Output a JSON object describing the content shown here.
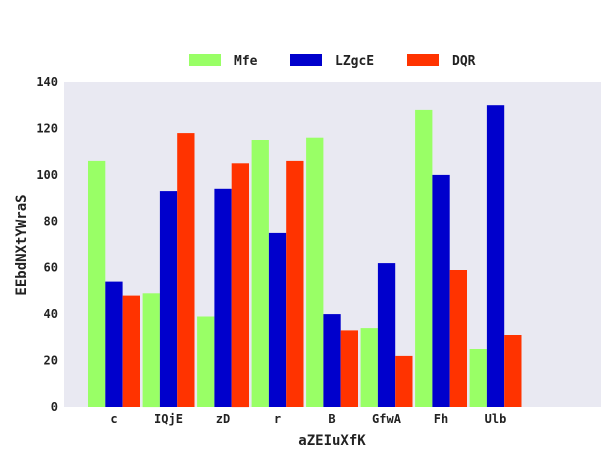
{
  "chart_data": {
    "type": "bar",
    "title": "",
    "xlabel": "aZEIuXfK",
    "ylabel": "EEbdNXtYWraS",
    "categories": [
      "c",
      "IQjE",
      "zD",
      "r",
      "B",
      "GfwA",
      "Fh",
      "Ulb"
    ],
    "series": [
      {
        "name": "Mfe",
        "color": "#99ff66",
        "values": [
          106,
          49,
          39,
          115,
          116,
          34,
          128,
          25
        ]
      },
      {
        "name": "LZgcE",
        "color": "#0000cc",
        "values": [
          54,
          93,
          94,
          75,
          40,
          62,
          100,
          130
        ]
      },
      {
        "name": "DQR",
        "color": "#ff3300",
        "values": [
          48,
          118,
          105,
          106,
          33,
          22,
          59,
          31
        ]
      }
    ],
    "ylim": [
      0,
      140
    ],
    "yticks": [
      0,
      20,
      40,
      60,
      80,
      100,
      120,
      140
    ],
    "grid": false,
    "legend_position": "top-center",
    "plot_background": "#e9e9f2"
  }
}
